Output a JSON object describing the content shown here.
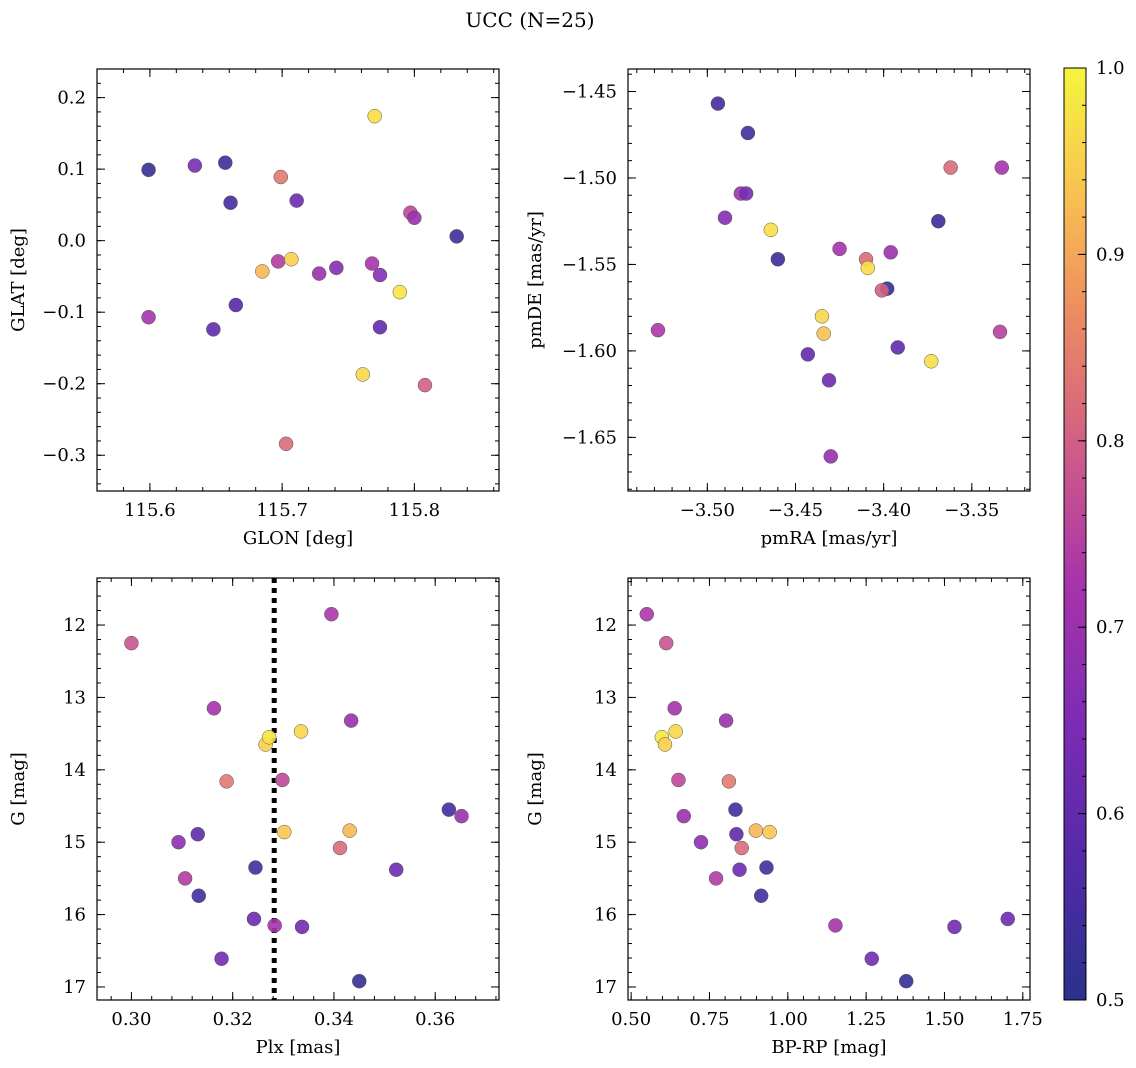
{
  "figure": {
    "title": "UCC (N=25)"
  },
  "colorbar": {
    "colormap": "plasma",
    "range": [
      0.5,
      1.0
    ],
    "ticks": [
      0.5,
      0.6,
      0.7,
      0.8,
      0.9,
      1.0
    ],
    "tick_labels": [
      "0.5",
      "0.6",
      "0.7",
      "0.8",
      "0.9",
      "1.0"
    ]
  },
  "chart_data": [
    {
      "type": "scatter",
      "title": "",
      "xlabel": "GLON [deg]",
      "ylabel": "GLAT [deg]",
      "xlim": [
        115.56,
        115.864
      ],
      "ylim": [
        -0.35,
        0.24
      ],
      "x_ticks": [
        115.6,
        115.7,
        115.8
      ],
      "x_tick_labels": [
        "115.6",
        "115.7",
        "115.8"
      ],
      "y_ticks": [
        0.2,
        0.1,
        0.0,
        -0.1,
        -0.2,
        -0.3
      ],
      "y_tick_labels": [
        "0.2",
        "0.1",
        "0.0",
        "−0.1",
        "−0.2",
        "−0.3"
      ],
      "points": [
        {
          "x": 115.599,
          "y": 0.099,
          "c": 0.52
        },
        {
          "x": 115.634,
          "y": 0.105,
          "c": 0.64
        },
        {
          "x": 115.657,
          "y": 0.109,
          "c": 0.54
        },
        {
          "x": 115.661,
          "y": 0.053,
          "c": 0.55
        },
        {
          "x": 115.699,
          "y": 0.089,
          "c": 0.84
        },
        {
          "x": 115.711,
          "y": 0.056,
          "c": 0.62
        },
        {
          "x": 115.77,
          "y": 0.174,
          "c": 0.97
        },
        {
          "x": 115.797,
          "y": 0.039,
          "c": 0.76
        },
        {
          "x": 115.8,
          "y": 0.032,
          "c": 0.7
        },
        {
          "x": 115.832,
          "y": 0.006,
          "c": 0.54
        },
        {
          "x": 115.685,
          "y": -0.043,
          "c": 0.92
        },
        {
          "x": 115.697,
          "y": -0.029,
          "c": 0.74
        },
        {
          "x": 115.707,
          "y": -0.026,
          "c": 0.95
        },
        {
          "x": 115.728,
          "y": -0.046,
          "c": 0.7
        },
        {
          "x": 115.741,
          "y": -0.038,
          "c": 0.66
        },
        {
          "x": 115.768,
          "y": -0.032,
          "c": 0.72
        },
        {
          "x": 115.774,
          "y": -0.048,
          "c": 0.66
        },
        {
          "x": 115.789,
          "y": -0.072,
          "c": 0.98
        },
        {
          "x": 115.599,
          "y": -0.107,
          "c": 0.72
        },
        {
          "x": 115.648,
          "y": -0.124,
          "c": 0.6
        },
        {
          "x": 115.665,
          "y": -0.09,
          "c": 0.58
        },
        {
          "x": 115.774,
          "y": -0.121,
          "c": 0.6
        },
        {
          "x": 115.761,
          "y": -0.187,
          "c": 0.96
        },
        {
          "x": 115.808,
          "y": -0.202,
          "c": 0.8
        },
        {
          "x": 115.703,
          "y": -0.284,
          "c": 0.82
        }
      ]
    },
    {
      "type": "scatter",
      "title": "",
      "xlabel": "pmRA [mas/yr]",
      "ylabel": "pmDE [mas/yr]",
      "xlim": [
        -3.545,
        -3.317
      ],
      "ylim": [
        -1.681,
        -1.437
      ],
      "x_ticks": [
        -3.5,
        -3.45,
        -3.4,
        -3.35
      ],
      "x_tick_labels": [
        "−3.50",
        "−3.45",
        "−3.40",
        "−3.35"
      ],
      "y_ticks": [
        -1.45,
        -1.5,
        -1.55,
        -1.6,
        -1.65
      ],
      "y_tick_labels": [
        "−1.45",
        "−1.50",
        "−1.55",
        "−1.60",
        "−1.65"
      ],
      "points": [
        {
          "x": -3.494,
          "y": -1.457,
          "c": 0.55
        },
        {
          "x": -3.477,
          "y": -1.474,
          "c": 0.54
        },
        {
          "x": -3.481,
          "y": -1.509,
          "c": 0.71
        },
        {
          "x": -3.478,
          "y": -1.509,
          "c": 0.64
        },
        {
          "x": -3.49,
          "y": -1.523,
          "c": 0.66
        },
        {
          "x": -3.464,
          "y": -1.53,
          "c": 0.97
        },
        {
          "x": -3.46,
          "y": -1.547,
          "c": 0.53
        },
        {
          "x": -3.425,
          "y": -1.541,
          "c": 0.72
        },
        {
          "x": -3.41,
          "y": -1.547,
          "c": 0.82
        },
        {
          "x": -3.409,
          "y": -1.552,
          "c": 0.97
        },
        {
          "x": -3.396,
          "y": -1.543,
          "c": 0.7
        },
        {
          "x": -3.398,
          "y": -1.564,
          "c": 0.52
        },
        {
          "x": -3.401,
          "y": -1.565,
          "c": 0.8
        },
        {
          "x": -3.362,
          "y": -1.494,
          "c": 0.82
        },
        {
          "x": -3.333,
          "y": -1.494,
          "c": 0.72
        },
        {
          "x": -3.369,
          "y": -1.525,
          "c": 0.53
        },
        {
          "x": -3.435,
          "y": -1.58,
          "c": 0.96
        },
        {
          "x": -3.434,
          "y": -1.59,
          "c": 0.93
        },
        {
          "x": -3.528,
          "y": -1.588,
          "c": 0.73
        },
        {
          "x": -3.443,
          "y": -1.602,
          "c": 0.6
        },
        {
          "x": -3.431,
          "y": -1.617,
          "c": 0.62
        },
        {
          "x": -3.392,
          "y": -1.598,
          "c": 0.6
        },
        {
          "x": -3.373,
          "y": -1.606,
          "c": 0.97
        },
        {
          "x": -3.334,
          "y": -1.589,
          "c": 0.75
        },
        {
          "x": -3.43,
          "y": -1.661,
          "c": 0.69
        }
      ]
    },
    {
      "type": "scatter",
      "title": "",
      "xlabel": "Plx [mas]",
      "ylabel": "G [mag]",
      "xlim": [
        0.2932,
        0.3726
      ],
      "ylim": [
        17.18,
        11.35
      ],
      "y_inverted": true,
      "vline": 0.3282,
      "x_ticks": [
        0.3,
        0.32,
        0.34,
        0.36
      ],
      "x_tick_labels": [
        "0.30",
        "0.32",
        "0.34",
        "0.36"
      ],
      "y_ticks": [
        12,
        13,
        14,
        15,
        16,
        17
      ],
      "y_tick_labels": [
        "12",
        "13",
        "14",
        "15",
        "16",
        "17"
      ],
      "points": [
        {
          "x": 0.3,
          "y": 12.25,
          "c": 0.78
        },
        {
          "x": 0.3395,
          "y": 11.85,
          "c": 0.73
        },
        {
          "x": 0.3163,
          "y": 13.15,
          "c": 0.72
        },
        {
          "x": 0.3434,
          "y": 13.32,
          "c": 0.7
        },
        {
          "x": 0.3335,
          "y": 13.47,
          "c": 0.96
        },
        {
          "x": 0.3265,
          "y": 13.65,
          "c": 0.95
        },
        {
          "x": 0.3272,
          "y": 13.55,
          "c": 0.98
        },
        {
          "x": 0.3188,
          "y": 14.16,
          "c": 0.84
        },
        {
          "x": 0.3298,
          "y": 14.14,
          "c": 0.76
        },
        {
          "x": 0.3627,
          "y": 14.55,
          "c": 0.55
        },
        {
          "x": 0.3652,
          "y": 14.64,
          "c": 0.7
        },
        {
          "x": 0.3093,
          "y": 15.0,
          "c": 0.68
        },
        {
          "x": 0.3131,
          "y": 14.89,
          "c": 0.59
        },
        {
          "x": 0.3302,
          "y": 14.86,
          "c": 0.94
        },
        {
          "x": 0.3431,
          "y": 14.84,
          "c": 0.92
        },
        {
          "x": 0.3412,
          "y": 15.08,
          "c": 0.82
        },
        {
          "x": 0.3106,
          "y": 15.5,
          "c": 0.74
        },
        {
          "x": 0.3245,
          "y": 15.35,
          "c": 0.55
        },
        {
          "x": 0.3523,
          "y": 15.38,
          "c": 0.62
        },
        {
          "x": 0.3133,
          "y": 15.74,
          "c": 0.55
        },
        {
          "x": 0.3242,
          "y": 16.06,
          "c": 0.62
        },
        {
          "x": 0.3283,
          "y": 16.15,
          "c": 0.72
        },
        {
          "x": 0.3337,
          "y": 16.17,
          "c": 0.63
        },
        {
          "x": 0.3178,
          "y": 16.61,
          "c": 0.63
        },
        {
          "x": 0.345,
          "y": 16.92,
          "c": 0.52
        }
      ]
    },
    {
      "type": "scatter",
      "title": "",
      "xlabel": "BP-RP [mag]",
      "ylabel": "G [mag]",
      "xlim": [
        0.49,
        1.773
      ],
      "ylim": [
        17.18,
        11.35
      ],
      "y_inverted": true,
      "x_ticks": [
        0.5,
        0.75,
        1.0,
        1.25,
        1.5,
        1.75
      ],
      "x_tick_labels": [
        "0.50",
        "0.75",
        "1.00",
        "1.25",
        "1.50",
        "1.75"
      ],
      "y_ticks": [
        12,
        13,
        14,
        15,
        16,
        17
      ],
      "y_tick_labels": [
        "12",
        "13",
        "14",
        "15",
        "16",
        "17"
      ],
      "points": [
        {
          "x": 0.55,
          "y": 11.85,
          "c": 0.73
        },
        {
          "x": 0.612,
          "y": 12.25,
          "c": 0.78
        },
        {
          "x": 0.639,
          "y": 13.15,
          "c": 0.72
        },
        {
          "x": 0.803,
          "y": 13.32,
          "c": 0.7
        },
        {
          "x": 0.642,
          "y": 13.47,
          "c": 0.96
        },
        {
          "x": 0.598,
          "y": 13.55,
          "c": 0.98
        },
        {
          "x": 0.608,
          "y": 13.65,
          "c": 0.95
        },
        {
          "x": 0.651,
          "y": 14.14,
          "c": 0.76
        },
        {
          "x": 0.812,
          "y": 14.16,
          "c": 0.84
        },
        {
          "x": 0.833,
          "y": 14.55,
          "c": 0.55
        },
        {
          "x": 0.668,
          "y": 14.64,
          "c": 0.7
        },
        {
          "x": 0.723,
          "y": 15.0,
          "c": 0.68
        },
        {
          "x": 0.836,
          "y": 14.89,
          "c": 0.59
        },
        {
          "x": 0.898,
          "y": 14.84,
          "c": 0.92
        },
        {
          "x": 0.942,
          "y": 14.86,
          "c": 0.94
        },
        {
          "x": 0.853,
          "y": 15.08,
          "c": 0.82
        },
        {
          "x": 0.771,
          "y": 15.5,
          "c": 0.74
        },
        {
          "x": 0.846,
          "y": 15.38,
          "c": 0.62
        },
        {
          "x": 0.932,
          "y": 15.35,
          "c": 0.55
        },
        {
          "x": 0.915,
          "y": 15.74,
          "c": 0.55
        },
        {
          "x": 1.152,
          "y": 16.15,
          "c": 0.72
        },
        {
          "x": 1.532,
          "y": 16.17,
          "c": 0.63
        },
        {
          "x": 1.702,
          "y": 16.06,
          "c": 0.62
        },
        {
          "x": 1.268,
          "y": 16.61,
          "c": 0.63
        },
        {
          "x": 1.378,
          "y": 16.92,
          "c": 0.52
        }
      ]
    }
  ]
}
